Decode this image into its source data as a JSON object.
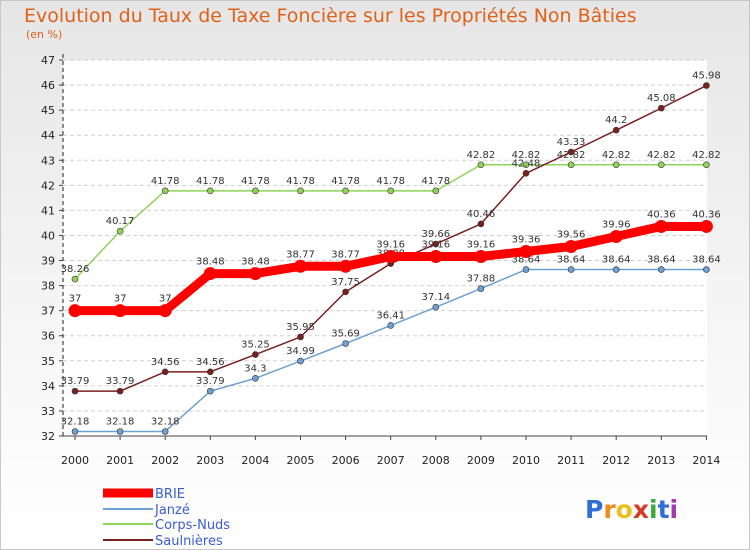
{
  "title": "Evolution du Taux de Taxe Foncière sur les Propriétés Non Bâties",
  "unit_label": "(en %)",
  "brand": "Proxiti",
  "chart_data": {
    "type": "line",
    "x": [
      "2000",
      "2001",
      "2002",
      "2003",
      "2004",
      "2005",
      "2006",
      "2007",
      "2008",
      "2009",
      "2010",
      "2011",
      "2012",
      "2013",
      "2014"
    ],
    "ylim": [
      32,
      47
    ],
    "yticks": [
      32,
      33,
      34,
      35,
      36,
      37,
      38,
      39,
      40,
      41,
      42,
      43,
      44,
      45,
      46,
      47
    ],
    "legend": "bottom-left",
    "series": [
      {
        "name": "BRIE",
        "color": "#ff0000",
        "values": [
          37,
          37,
          37,
          38.48,
          38.48,
          38.77,
          38.77,
          39.16,
          39.16,
          39.16,
          39.36,
          39.56,
          39.96,
          40.36,
          40.36
        ],
        "labels": [
          "37",
          "37",
          "37",
          "38.48",
          "38.48",
          "38.77",
          "38.77",
          "39.16",
          "39.16",
          "39.16",
          "39.36",
          "39.56",
          "39.96",
          "40.36",
          "40.36"
        ]
      },
      {
        "name": "Janzé",
        "color": "#6fa1d0",
        "values": [
          32.18,
          32.18,
          32.18,
          33.79,
          34.3,
          34.99,
          35.69,
          36.41,
          37.14,
          37.88,
          38.64,
          38.64,
          38.64,
          38.64,
          38.64
        ],
        "labels": [
          "32.18",
          "32.18",
          "32.18",
          "33.79",
          "34.3",
          "34.99",
          "35.69",
          "36.41",
          "37.14",
          "37.88",
          "38.64",
          "38.64",
          "38.64",
          "38.64",
          "38.64"
        ]
      },
      {
        "name": "Corps-Nuds",
        "color": "#8fd35a",
        "values": [
          38.26,
          40.17,
          41.78,
          41.78,
          41.78,
          41.78,
          41.78,
          41.78,
          41.78,
          42.82,
          42.82,
          42.82,
          42.82,
          42.82,
          42.82
        ],
        "labels": [
          "38.26",
          "40.17",
          "41.78",
          "41.78",
          "41.78",
          "41.78",
          "41.78",
          "41.78",
          "41.78",
          "42.82",
          "42.82",
          "42.82",
          "42.82",
          "42.82",
          "42.82"
        ]
      },
      {
        "name": "Saulnières",
        "color": "#7a2020",
        "values": [
          33.79,
          33.79,
          34.56,
          34.56,
          35.25,
          35.95,
          37.75,
          38.88,
          39.66,
          40.46,
          42.48,
          43.33,
          44.2,
          45.08,
          45.98
        ],
        "labels": [
          "33.79",
          "33.79",
          "34.56",
          "34.56",
          "35.25",
          "35.95",
          "37.75",
          "38.88",
          "39.66",
          "40.46",
          "42.48",
          "43.33",
          "44.2",
          "45.08",
          "45.98"
        ]
      }
    ]
  }
}
